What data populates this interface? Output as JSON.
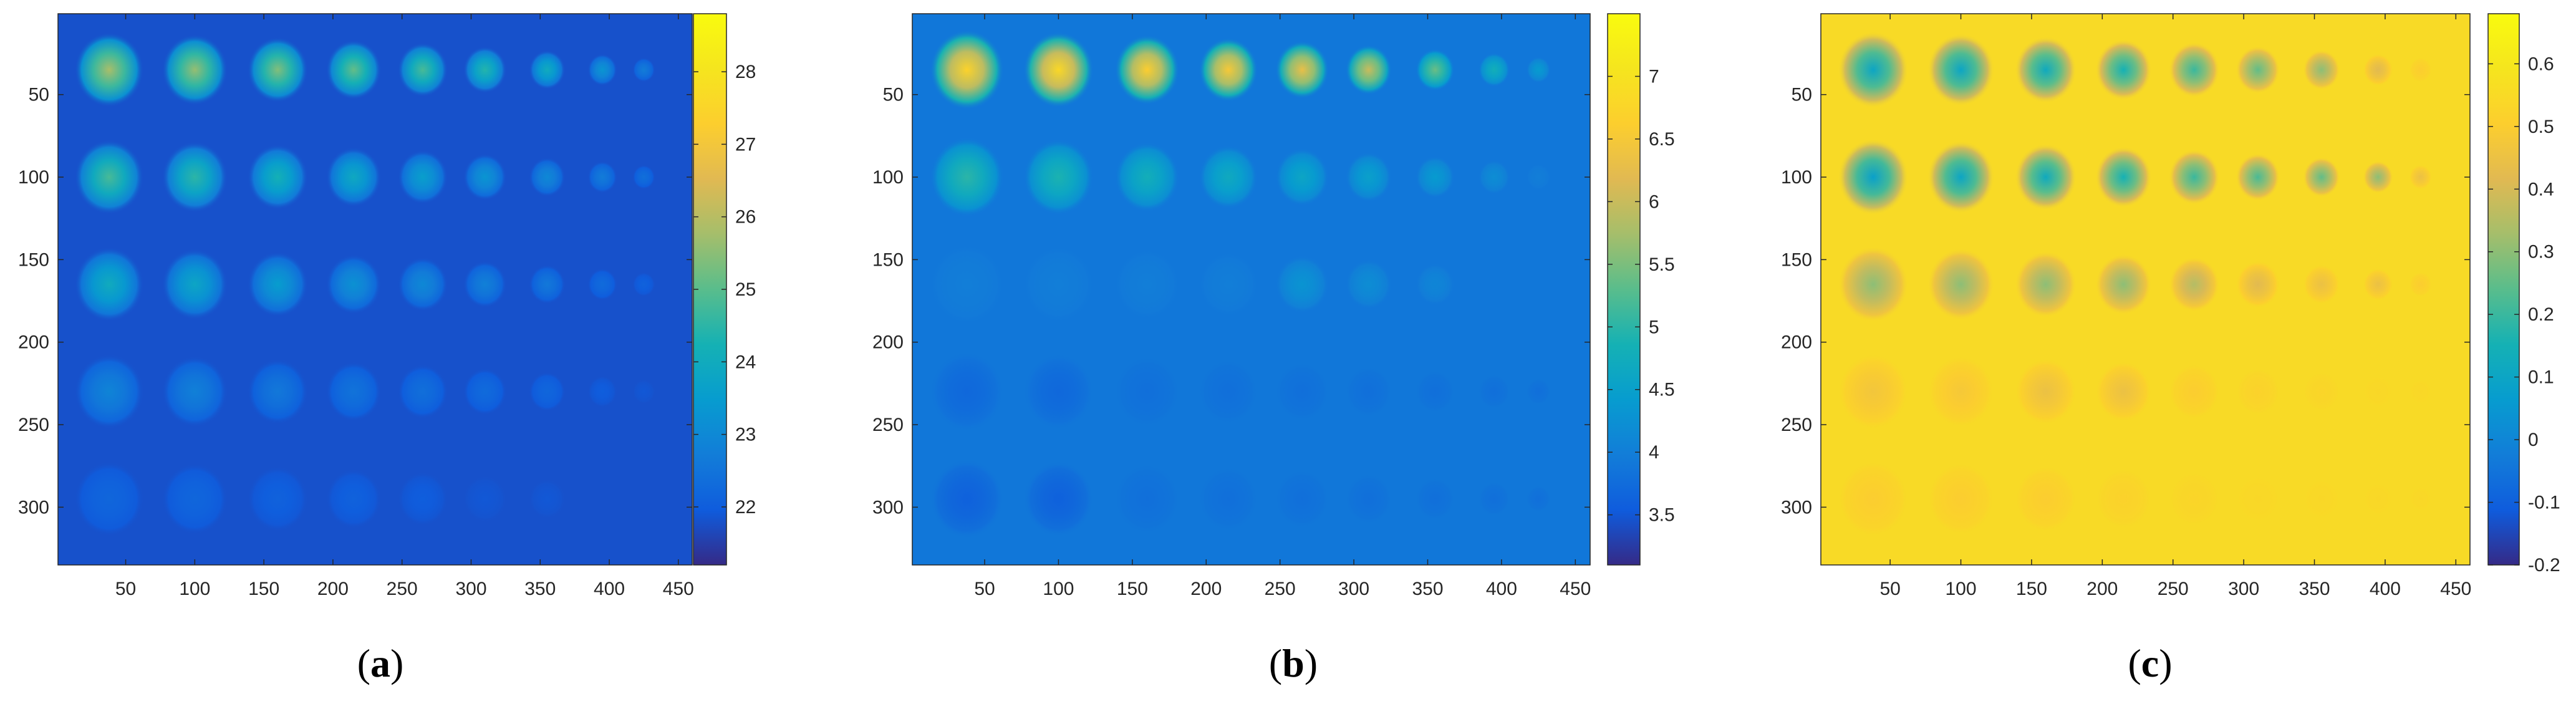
{
  "chart_data": [
    {
      "type": "heatmap",
      "panel_label": "a",
      "xlim": [
        1,
        460
      ],
      "ylim": [
        1,
        335
      ],
      "x_ticks": [
        50,
        100,
        150,
        200,
        250,
        300,
        350,
        400,
        450
      ],
      "y_ticks": [
        50,
        100,
        150,
        200,
        250,
        300
      ],
      "y_reversed": true,
      "colorbar": {
        "range": [
          21.2,
          28.8
        ],
        "ticks": [
          22,
          23,
          24,
          25,
          26,
          27,
          28
        ]
      },
      "background_value": 21.8,
      "colormap": "parula",
      "spot_columns_x": [
        38,
        100,
        160,
        215,
        265,
        310,
        355,
        395,
        425
      ],
      "spot_rows_y": [
        35,
        100,
        165,
        230,
        295
      ],
      "spot_peak_values": [
        [
          25.8,
          25.6,
          25.4,
          25.1,
          24.8,
          24.4,
          24.0,
          23.3,
          22.7
        ],
        [
          24.8,
          24.5,
          24.2,
          23.9,
          23.6,
          23.3,
          23.0,
          22.7,
          22.4
        ],
        [
          24.0,
          23.8,
          23.5,
          23.2,
          23.0,
          22.8,
          22.6,
          22.3,
          22.1
        ],
        [
          22.9,
          22.8,
          22.6,
          22.5,
          22.4,
          22.3,
          22.2,
          22.0,
          21.9
        ],
        [
          22.2,
          22.2,
          22.1,
          22.1,
          22.0,
          21.9,
          21.9,
          21.8,
          21.8
        ]
      ]
    },
    {
      "type": "heatmap",
      "panel_label": "b",
      "xlim": [
        1,
        460
      ],
      "ylim": [
        1,
        335
      ],
      "x_ticks": [
        50,
        100,
        150,
        200,
        250,
        300,
        350,
        400,
        450
      ],
      "y_ticks": [
        50,
        100,
        150,
        200,
        250,
        300
      ],
      "y_reversed": true,
      "colorbar": {
        "range": [
          3.1,
          7.5
        ],
        "ticks": [
          3.5,
          4,
          4.5,
          5,
          5.5,
          6,
          6.5,
          7
        ]
      },
      "background_value": 3.9,
      "colormap": "parula",
      "spot_columns_x": [
        38,
        100,
        160,
        215,
        265,
        310,
        355,
        395,
        425
      ],
      "spot_rows_y": [
        35,
        100,
        165,
        230,
        295
      ],
      "spot_peak_values": [
        [
          6.7,
          6.8,
          6.6,
          6.5,
          6.3,
          6.0,
          5.4,
          4.8,
          4.4
        ],
        [
          5.0,
          4.9,
          4.8,
          4.7,
          4.6,
          4.5,
          4.4,
          4.2,
          4.0
        ],
        [
          4.0,
          4.0,
          4.0,
          4.0,
          4.3,
          4.2,
          4.1,
          3.9,
          3.9
        ],
        [
          3.7,
          3.7,
          3.8,
          3.8,
          3.8,
          3.8,
          3.8,
          3.8,
          3.8
        ],
        [
          3.6,
          3.6,
          3.8,
          3.8,
          3.8,
          3.8,
          3.8,
          3.8,
          3.8
        ]
      ]
    },
    {
      "type": "heatmap",
      "panel_label": "c",
      "xlim": [
        1,
        460
      ],
      "ylim": [
        1,
        335
      ],
      "x_ticks": [
        50,
        100,
        150,
        200,
        250,
        300,
        350,
        400,
        450
      ],
      "y_ticks": [
        50,
        100,
        150,
        200,
        250,
        300
      ],
      "y_reversed": true,
      "colorbar": {
        "range": [
          -0.2,
          0.68
        ],
        "ticks": [
          -0.2,
          -0.1,
          0,
          0.1,
          0.2,
          0.3,
          0.4,
          0.5,
          0.6
        ]
      },
      "background_value": 0.55,
      "colormap": "parula",
      "spot_columns_x": [
        38,
        100,
        160,
        215,
        265,
        310,
        355,
        395,
        425
      ],
      "spot_rows_y": [
        35,
        100,
        165,
        230,
        295
      ],
      "spot_peak_values": [
        [
          0.1,
          0.1,
          0.12,
          0.15,
          0.2,
          0.25,
          0.3,
          0.42,
          0.5
        ],
        [
          0.08,
          0.1,
          0.12,
          0.15,
          0.2,
          0.22,
          0.25,
          0.3,
          0.45
        ],
        [
          0.3,
          0.3,
          0.3,
          0.3,
          0.35,
          0.42,
          0.45,
          0.45,
          0.5
        ],
        [
          0.47,
          0.48,
          0.45,
          0.45,
          0.5,
          0.52,
          0.53,
          0.54,
          0.54
        ],
        [
          0.5,
          0.5,
          0.5,
          0.52,
          0.53,
          0.54,
          0.54,
          0.54,
          0.54
        ]
      ]
    }
  ]
}
